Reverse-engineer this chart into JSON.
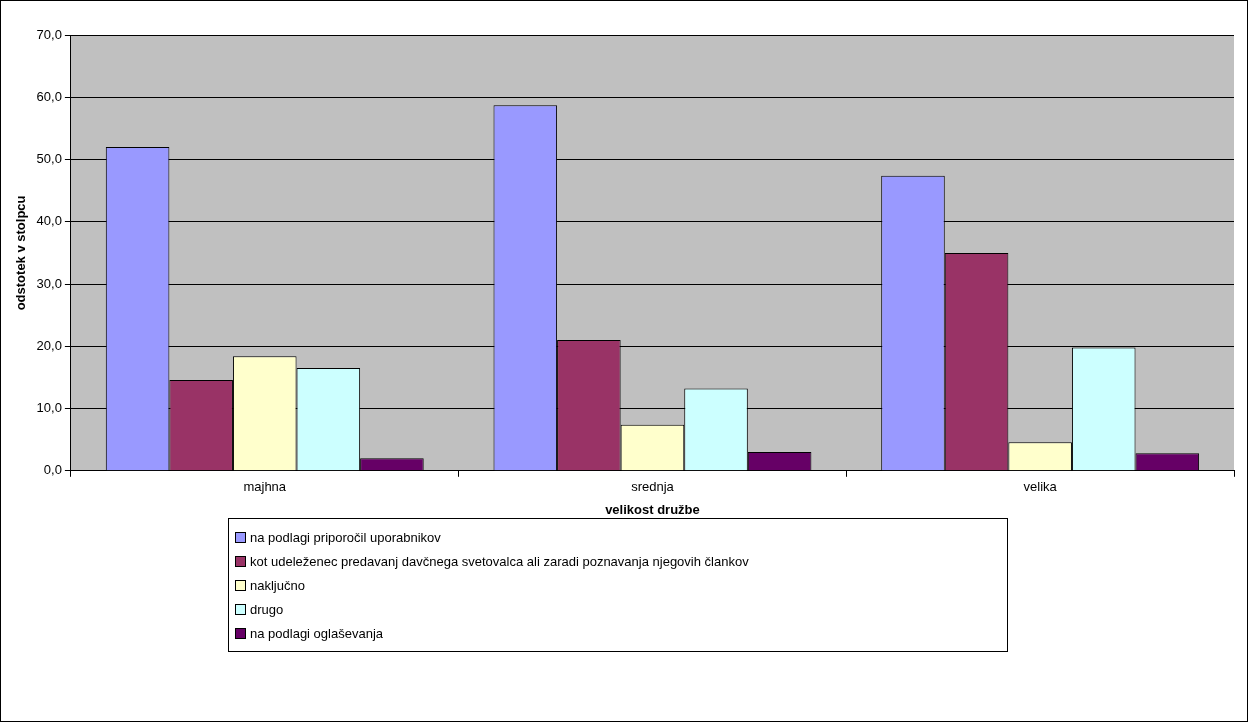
{
  "chart_data": {
    "type": "bar",
    "xlabel": "velikost družbe",
    "ylabel": "odstotek v stolpcu",
    "categories": [
      "majhna",
      "srednja",
      "velika"
    ],
    "series": [
      {
        "name": "na podlagi priporočil uporabnikov",
        "color": "#9999ff",
        "values": [
          52.0,
          58.7,
          47.4
        ]
      },
      {
        "name": "kot udeleženec predavanj davčnega svetovalca ali zaradi poznavanja njegovih člankov",
        "color": "#993366",
        "values": [
          14.6,
          21.0,
          35.0
        ]
      },
      {
        "name": "naključno",
        "color": "#ffffcc",
        "values": [
          18.4,
          7.4,
          4.6
        ]
      },
      {
        "name": "drugo",
        "color": "#ccffff",
        "values": [
          16.5,
          13.2,
          19.8
        ]
      },
      {
        "name": "na podlagi oglaševanja",
        "color": "#660066",
        "values": [
          2.0,
          3.0,
          2.8
        ]
      }
    ],
    "ylim": [
      0,
      70
    ],
    "yticks": [
      {
        "value": 0,
        "label": "0,0"
      },
      {
        "value": 10,
        "label": "10,0"
      },
      {
        "value": 20,
        "label": "20,0"
      },
      {
        "value": 30,
        "label": "30,0"
      },
      {
        "value": 40,
        "label": "40,0"
      },
      {
        "value": 50,
        "label": "50,0"
      },
      {
        "value": 60,
        "label": "60,0"
      },
      {
        "value": 70,
        "label": "70,0"
      }
    ],
    "grid": "y",
    "legend": "bottom"
  }
}
